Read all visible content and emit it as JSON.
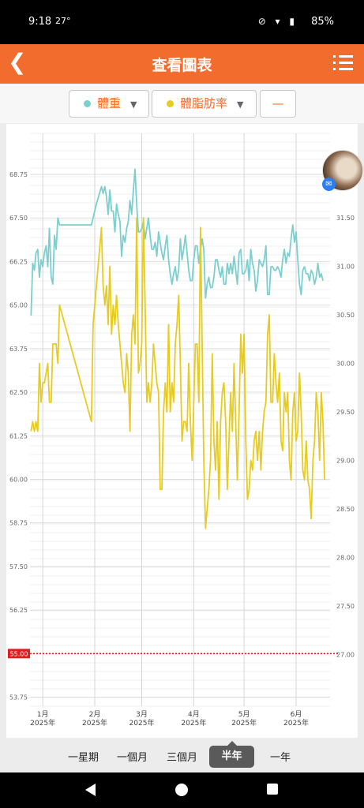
{
  "status_bar": {
    "time": "9:18",
    "temperature": "27°",
    "battery": "85%"
  },
  "header": {
    "title": "查看圖表",
    "back_icon": "chevron-left-icon",
    "menu_icon": "list-menu-icon"
  },
  "tabs": [
    {
      "label": "體重",
      "color": "#7ccfcf"
    },
    {
      "label": "體脂肪率",
      "color": "#e6cc20"
    },
    {
      "label": "—"
    }
  ],
  "periods": [
    {
      "label": "一星期"
    },
    {
      "label": "一個月"
    },
    {
      "label": "三個月"
    },
    {
      "label": "半年",
      "active": true
    },
    {
      "label": "一年"
    }
  ],
  "chart_data": {
    "type": "line",
    "x_ticks": [
      {
        "label": "1月",
        "sub": "2025年",
        "day": 1
      },
      {
        "label": "2月",
        "sub": "2025年",
        "day": 32
      },
      {
        "label": "3月",
        "sub": "2025年",
        "day": 60
      },
      {
        "label": "4月",
        "sub": "2025年",
        "day": 91
      },
      {
        "label": "5月",
        "sub": "2025年",
        "day": 121
      },
      {
        "label": "6月",
        "sub": "2025年",
        "day": 152
      }
    ],
    "y_left": {
      "ticks": [
        "53.75",
        "55.00",
        "56.25",
        "57.50",
        "58.75",
        "60.00",
        "61.25",
        "62.50",
        "63.75",
        "65.00",
        "66.25",
        "67.50",
        "68.75"
      ],
      "min": 53.75,
      "max": 68.75
    },
    "y_right": {
      "ticks": [
        "27.00",
        "27.50",
        "28.00",
        "28.50",
        "29.00",
        "29.50",
        "30.00",
        "30.50",
        "31.00",
        "31.50"
      ],
      "min": 26.54,
      "max": 31.93
    },
    "target": {
      "value": 55.0,
      "label": "55.00",
      "color": "#e02020"
    },
    "series": [
      {
        "name": "體重",
        "axis": "left",
        "color": "#7ccfcf",
        "points": [
          [
            -6,
            64.7
          ],
          [
            -5,
            66.2
          ],
          [
            -4,
            66.0
          ],
          [
            -3,
            66.5
          ],
          [
            -2,
            66.6
          ],
          [
            -1,
            65.8
          ],
          [
            0,
            66.3
          ],
          [
            1,
            66.1
          ],
          [
            2,
            66.5
          ],
          [
            3,
            66.7
          ],
          [
            4,
            66.1
          ],
          [
            5,
            67.2
          ],
          [
            6,
            65.8
          ],
          [
            7,
            65.6
          ],
          [
            8,
            67.0
          ],
          [
            9,
            66.6
          ],
          [
            10,
            67.5
          ],
          [
            11,
            67.3
          ],
          [
            30,
            67.3
          ],
          [
            33,
            67.9
          ],
          [
            36,
            68.4
          ],
          [
            37,
            68.2
          ],
          [
            38,
            68.4
          ],
          [
            39,
            68.1
          ],
          [
            40,
            67.6
          ],
          [
            41,
            68.3
          ],
          [
            42,
            67.7
          ],
          [
            43,
            67.7
          ],
          [
            44,
            67.1
          ],
          [
            45,
            67.9
          ],
          [
            46,
            67.6
          ],
          [
            47,
            67.4
          ],
          [
            48,
            66.4
          ],
          [
            49,
            67.0
          ],
          [
            50,
            66.8
          ],
          [
            51,
            67.2
          ],
          [
            52,
            67.4
          ],
          [
            53,
            68.0
          ],
          [
            54,
            67.6
          ],
          [
            55,
            68.3
          ],
          [
            56,
            68.9
          ],
          [
            57,
            67.9
          ],
          [
            58,
            67.1
          ],
          [
            59,
            67.1
          ],
          [
            60,
            67.2
          ],
          [
            61,
            67.4
          ],
          [
            62,
            66.9
          ],
          [
            63,
            67.2
          ],
          [
            64,
            67.5
          ],
          [
            65,
            67.0
          ],
          [
            66,
            66.6
          ],
          [
            67,
            66.6
          ],
          [
            68,
            66.8
          ],
          [
            69,
            66.4
          ],
          [
            70,
            67.1
          ],
          [
            71,
            66.8
          ],
          [
            72,
            66.5
          ],
          [
            73,
            66.3
          ],
          [
            74,
            66.7
          ],
          [
            75,
            67.0
          ],
          [
            76,
            66.3
          ],
          [
            77,
            65.9
          ],
          [
            78,
            65.6
          ],
          [
            79,
            65.9
          ],
          [
            80,
            66.1
          ],
          [
            81,
            65.7
          ],
          [
            82,
            66.0
          ],
          [
            83,
            66.9
          ],
          [
            84,
            66.3
          ],
          [
            85,
            66.6
          ],
          [
            86,
            67.0
          ],
          [
            87,
            66.5
          ],
          [
            88,
            66.0
          ],
          [
            89,
            65.7
          ],
          [
            90,
            65.7
          ],
          [
            91,
            66.3
          ],
          [
            92,
            66.7
          ],
          [
            93,
            66.7
          ],
          [
            94,
            66.2
          ],
          [
            95,
            66.6
          ],
          [
            96,
            66.9
          ],
          [
            97,
            66.6
          ],
          [
            98,
            65.2
          ],
          [
            99,
            65.6
          ],
          [
            100,
            65.8
          ],
          [
            101,
            65.5
          ],
          [
            102,
            65.5
          ],
          [
            103,
            65.8
          ],
          [
            104,
            66.3
          ],
          [
            105,
            66.3
          ],
          [
            106,
            66.0
          ],
          [
            107,
            65.8
          ],
          [
            108,
            66.1
          ],
          [
            109,
            65.6
          ],
          [
            110,
            65.6
          ],
          [
            111,
            66.2
          ],
          [
            112,
            65.9
          ],
          [
            113,
            66.2
          ],
          [
            114,
            65.9
          ],
          [
            115,
            66.4
          ],
          [
            116,
            66.0
          ],
          [
            117,
            65.6
          ],
          [
            118,
            66.5
          ],
          [
            119,
            66.6
          ],
          [
            120,
            65.9
          ],
          [
            121,
            65.9
          ],
          [
            122,
            66.0
          ],
          [
            123,
            66.3
          ],
          [
            124,
            65.7
          ],
          [
            125,
            66.6
          ],
          [
            126,
            66.2
          ],
          [
            127,
            66.0
          ],
          [
            128,
            65.4
          ],
          [
            129,
            65.7
          ],
          [
            130,
            66.3
          ],
          [
            131,
            66.2
          ],
          [
            132,
            66.1
          ],
          [
            133,
            66.3
          ],
          [
            134,
            66.7
          ],
          [
            135,
            65.3
          ],
          [
            136,
            65.3
          ],
          [
            137,
            66.1
          ],
          [
            138,
            66.1
          ],
          [
            139,
            66.0
          ],
          [
            140,
            66.0
          ],
          [
            141,
            66.1
          ],
          [
            142,
            66.0
          ],
          [
            143,
            65.8
          ],
          [
            144,
            66.3
          ],
          [
            145,
            66.6
          ],
          [
            146,
            66.2
          ],
          [
            147,
            66.5
          ],
          [
            148,
            66.4
          ],
          [
            149,
            66.9
          ],
          [
            150,
            67.3
          ],
          [
            151,
            66.8
          ],
          [
            152,
            67.1
          ],
          [
            153,
            66.3
          ],
          [
            154,
            65.6
          ],
          [
            155,
            65.3
          ],
          [
            156,
            66.0
          ],
          [
            157,
            66.1
          ],
          [
            158,
            65.9
          ],
          [
            159,
            65.9
          ],
          [
            160,
            65.7
          ],
          [
            161,
            66.0
          ],
          [
            162,
            65.9
          ],
          [
            163,
            65.6
          ],
          [
            164,
            65.8
          ],
          [
            165,
            66.2
          ],
          [
            166,
            65.8
          ],
          [
            167,
            65.9
          ],
          [
            168,
            65.7
          ]
        ]
      },
      {
        "name": "體脂肪率",
        "axis": "right",
        "color": "#e6cc20",
        "points": [
          [
            -6,
            29.3
          ],
          [
            -5,
            29.4
          ],
          [
            -4,
            29.3
          ],
          [
            -3,
            29.4
          ],
          [
            -2,
            29.3
          ],
          [
            -1,
            30.0
          ],
          [
            0,
            29.6
          ],
          [
            1,
            29.8
          ],
          [
            2,
            29.8
          ],
          [
            3,
            29.9
          ],
          [
            4,
            30.0
          ],
          [
            5,
            29.6
          ],
          [
            6,
            29.6
          ],
          [
            7,
            30.2
          ],
          [
            8,
            30.2
          ],
          [
            9,
            30.2
          ],
          [
            10,
            30.0
          ],
          [
            11,
            30.6
          ],
          [
            30,
            29.4
          ],
          [
            31,
            30.4
          ],
          [
            36,
            31.4
          ],
          [
            37,
            30.8
          ],
          [
            38,
            30.6
          ],
          [
            39,
            30.8
          ],
          [
            40,
            30.4
          ],
          [
            41,
            31.0
          ],
          [
            42,
            30.3
          ],
          [
            43,
            30.6
          ],
          [
            44,
            30.4
          ],
          [
            45,
            30.7
          ],
          [
            46,
            30.4
          ],
          [
            47,
            30.2
          ],
          [
            48,
            30.0
          ],
          [
            49,
            29.8
          ],
          [
            50,
            29.7
          ],
          [
            51,
            30.1
          ],
          [
            52,
            29.9
          ],
          [
            53,
            29.3
          ],
          [
            54,
            30.3
          ],
          [
            55,
            30.5
          ],
          [
            56,
            30.2
          ],
          [
            57,
            31.5
          ],
          [
            58,
            29.9
          ],
          [
            59,
            30.0
          ],
          [
            60,
            30.2
          ],
          [
            61,
            31.5
          ],
          [
            62,
            30.6
          ],
          [
            63,
            29.6
          ],
          [
            64,
            29.8
          ],
          [
            65,
            29.6
          ],
          [
            66,
            29.8
          ],
          [
            67,
            30.2
          ],
          [
            68,
            30.0
          ],
          [
            69,
            29.8
          ],
          [
            70,
            29.7
          ],
          [
            71,
            28.7
          ],
          [
            72,
            28.7
          ],
          [
            73,
            29.5
          ],
          [
            74,
            29.8
          ],
          [
            75,
            29.5
          ],
          [
            76,
            30.4
          ],
          [
            77,
            29.5
          ],
          [
            78,
            29.8
          ],
          [
            79,
            29.6
          ],
          [
            80,
            30.2
          ],
          [
            81,
            30.4
          ],
          [
            82,
            30.7
          ],
          [
            83,
            30.0
          ],
          [
            84,
            29.2
          ],
          [
            85,
            29.4
          ],
          [
            86,
            29.4
          ],
          [
            87,
            29.3
          ],
          [
            88,
            30.0
          ],
          [
            89,
            29.4
          ],
          [
            90,
            29.0
          ],
          [
            91,
            29.6
          ],
          [
            92,
            30.2
          ],
          [
            93,
            30.2
          ],
          [
            94,
            29.6
          ],
          [
            95,
            31.4
          ],
          [
            96,
            30.2
          ],
          [
            97,
            29.0
          ],
          [
            98,
            28.3
          ],
          [
            99,
            28.5
          ],
          [
            100,
            28.7
          ],
          [
            101,
            29.0
          ],
          [
            102,
            30.1
          ],
          [
            103,
            29.2
          ],
          [
            104,
            28.9
          ],
          [
            105,
            29.4
          ],
          [
            106,
            28.6
          ],
          [
            107,
            29.4
          ],
          [
            108,
            29.7
          ],
          [
            109,
            29.8
          ],
          [
            110,
            29.4
          ],
          [
            111,
            28.7
          ],
          [
            112,
            29.2
          ],
          [
            113,
            29.7
          ],
          [
            114,
            29.3
          ],
          [
            115,
            30.0
          ],
          [
            116,
            29.4
          ],
          [
            117,
            28.8
          ],
          [
            118,
            29.5
          ],
          [
            119,
            30.3
          ],
          [
            120,
            29.9
          ],
          [
            121,
            30.3
          ],
          [
            122,
            29.2
          ],
          [
            123,
            28.6
          ],
          [
            124,
            28.7
          ],
          [
            125,
            29.0
          ],
          [
            126,
            28.9
          ],
          [
            127,
            29.2
          ],
          [
            128,
            29.3
          ],
          [
            129,
            29.0
          ],
          [
            130,
            29.3
          ],
          [
            131,
            28.9
          ],
          [
            132,
            29.3
          ],
          [
            133,
            29.5
          ],
          [
            134,
            29.6
          ],
          [
            135,
            30.3
          ],
          [
            136,
            30.5
          ],
          [
            137,
            29.6
          ],
          [
            138,
            29.6
          ],
          [
            139,
            30.1
          ],
          [
            140,
            29.8
          ],
          [
            141,
            29.6
          ],
          [
            142,
            29.9
          ],
          [
            143,
            29.2
          ],
          [
            144,
            29.1
          ],
          [
            145,
            29.7
          ],
          [
            146,
            29.5
          ],
          [
            147,
            29.7
          ],
          [
            148,
            29.0
          ],
          [
            149,
            28.8
          ],
          [
            150,
            29.5
          ],
          [
            151,
            29.7
          ],
          [
            152,
            29.2
          ],
          [
            153,
            29.3
          ],
          [
            154,
            29.9
          ],
          [
            155,
            29.5
          ],
          [
            156,
            28.9
          ],
          [
            157,
            28.8
          ],
          [
            158,
            29.2
          ],
          [
            159,
            28.8
          ],
          [
            160,
            28.7
          ],
          [
            161,
            28.4
          ],
          [
            162,
            29.0
          ],
          [
            163,
            29.2
          ],
          [
            164,
            29.7
          ],
          [
            165,
            29.5
          ],
          [
            166,
            29.0
          ],
          [
            167,
            29.7
          ],
          [
            168,
            29.4
          ],
          [
            169,
            28.8
          ]
        ]
      }
    ]
  }
}
